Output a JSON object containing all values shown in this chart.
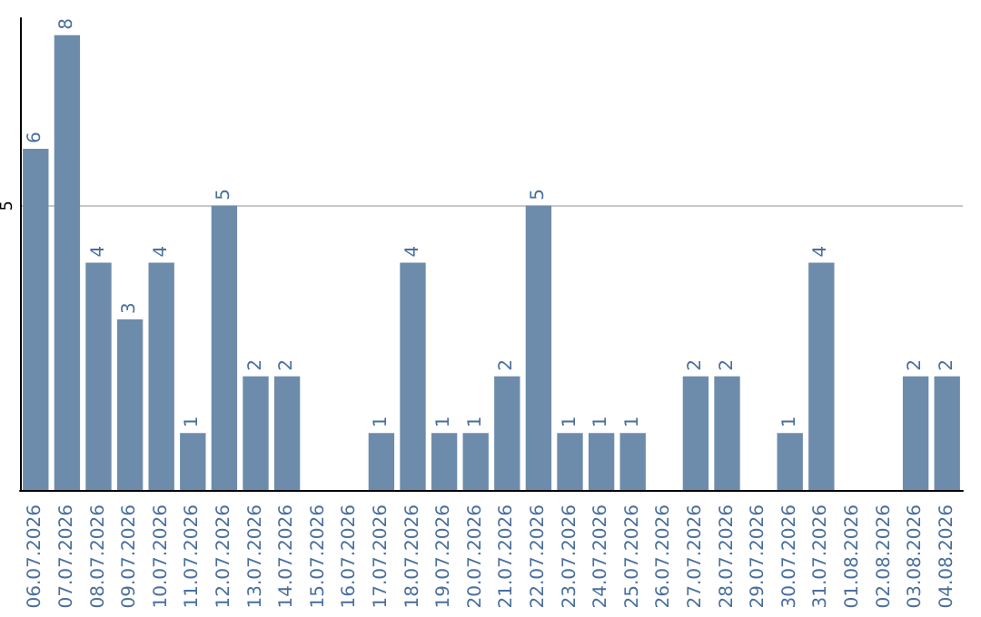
{
  "chart_data": {
    "type": "bar",
    "categories": [
      "06.07.2026",
      "07.07.2026",
      "08.07.2026",
      "09.07.2026",
      "10.07.2026",
      "11.07.2026",
      "12.07.2026",
      "13.07.2026",
      "14.07.2026",
      "15.07.2026",
      "16.07.2026",
      "17.07.2026",
      "18.07.2026",
      "19.07.2026",
      "20.07.2026",
      "21.07.2026",
      "22.07.2026",
      "23.07.2026",
      "24.07.2026",
      "25.07.2026",
      "26.07.2026",
      "27.07.2026",
      "28.07.2026",
      "29.07.2026",
      "30.07.2026",
      "31.07.2026",
      "01.08.2026",
      "02.08.2026",
      "03.08.2026",
      "04.08.2026"
    ],
    "values": [
      6,
      8,
      4,
      3,
      4,
      1,
      5,
      2,
      2,
      null,
      null,
      1,
      4,
      1,
      1,
      2,
      5,
      1,
      1,
      1,
      null,
      2,
      2,
      null,
      1,
      4,
      null,
      null,
      2,
      2
    ],
    "color": "#6d8cab",
    "ylim": [
      0,
      8.3
    ],
    "yticks": [
      5
    ],
    "grid": "y",
    "data_labels": true
  }
}
